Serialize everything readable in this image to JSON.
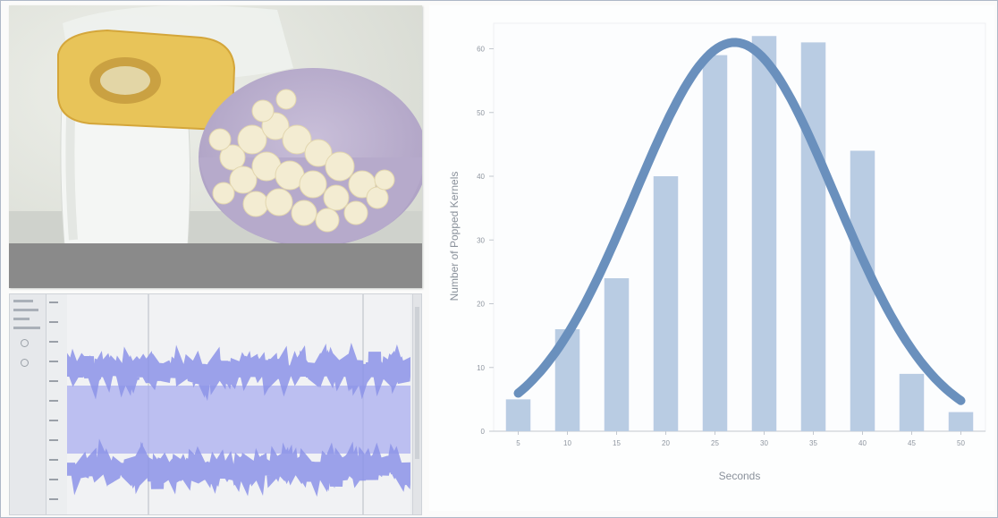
{
  "photo": {
    "subject-icon": "popcorn-popper-photo"
  },
  "waveform_app": {
    "trace_color": "#8c93e8",
    "trace_core_color": "#a9aef0"
  },
  "chart_data": {
    "type": "bar",
    "title": "",
    "xlabel": "Seconds",
    "ylabel": "Number of Popped Kernels",
    "categories": [
      "5",
      "10",
      "15",
      "20",
      "25",
      "30",
      "35",
      "40",
      "45",
      "50"
    ],
    "values": [
      5,
      16,
      24,
      40,
      59,
      62,
      61,
      44,
      9,
      3
    ],
    "ylim": [
      0,
      64
    ],
    "yticks": [
      "0",
      "10",
      "20",
      "30",
      "40",
      "50",
      "60"
    ],
    "bar_color": "#b9cce3",
    "curve": {
      "type": "normal-fit",
      "mean": 27,
      "peak": 61,
      "sd": 10.2,
      "color": "#6a90bd"
    },
    "grid": false,
    "legend": "none"
  }
}
